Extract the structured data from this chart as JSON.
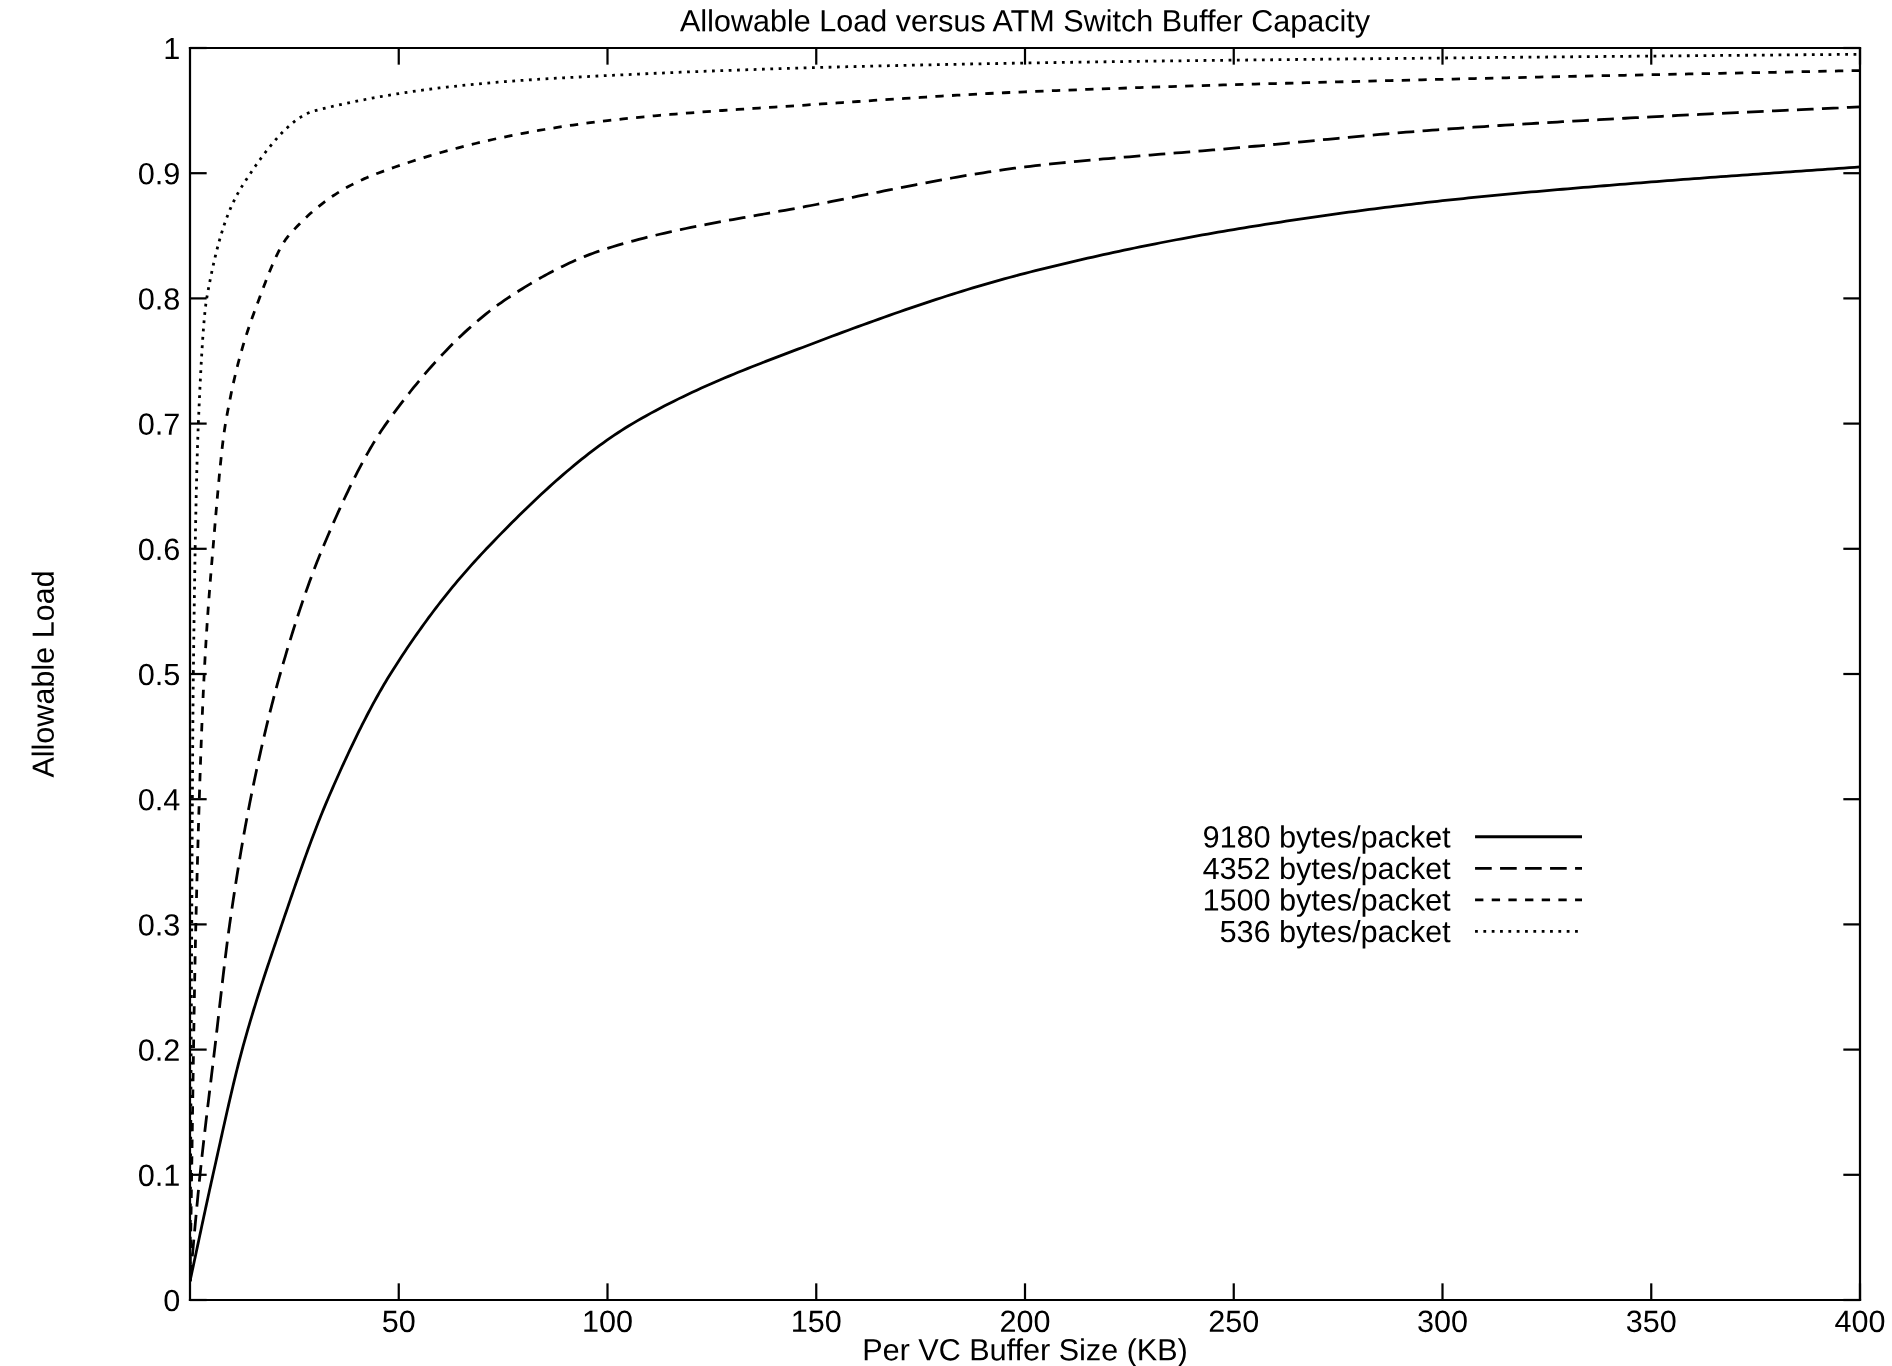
{
  "chart_data": {
    "type": "line",
    "title": "Allowable Load versus ATM Switch Buffer Capacity",
    "xlabel": "Per VC Buffer Size (KB)",
    "ylabel": "Allowable Load",
    "xlim": [
      0,
      400
    ],
    "xticks": [
      50,
      100,
      150,
      200,
      250,
      300,
      350,
      400
    ],
    "ylim": [
      0,
      1
    ],
    "yticks": [
      0,
      0.1,
      0.2,
      0.3,
      0.4,
      0.5,
      0.6,
      0.7,
      0.8,
      0.9,
      1
    ],
    "grid": false,
    "legend": "right",
    "marker": "none",
    "series": [
      {
        "name": "9180 bytes/packet",
        "color": "#000000",
        "line_style": "solid",
        "x": [
          0,
          5.5,
          12.5,
          22,
          33,
          48,
          71,
          106,
          150,
          200,
          250,
          300,
          350,
          400
        ],
        "values": [
          0.015,
          0.1,
          0.2,
          0.3,
          0.4,
          0.5,
          0.6,
          0.7,
          0.765,
          0.82,
          0.855,
          0.878,
          0.893,
          0.905
        ]
      },
      {
        "name": "4352 bytes/packet",
        "color": "#000000",
        "line_style": "dashed",
        "x": [
          0,
          2.4,
          5.9,
          9.5,
          14.5,
          21.6,
          31.7,
          47,
          76,
          100,
          150,
          200,
          250,
          300,
          350,
          400
        ],
        "values": [
          0.015,
          0.1,
          0.2,
          0.3,
          0.4,
          0.5,
          0.6,
          0.7,
          0.8,
          0.84,
          0.875,
          0.905,
          0.92,
          0.935,
          0.945,
          0.953
        ]
      },
      {
        "name": "1500 bytes/packet",
        "color": "#000000",
        "line_style": "dashed",
        "x": [
          0,
          1.4,
          3.4,
          5.5,
          8.5,
          16.6,
          23.6,
          45,
          100,
          150,
          200,
          300,
          400
        ],
        "values": [
          0.015,
          0.3,
          0.5,
          0.6,
          0.7,
          0.8,
          0.85,
          0.9,
          0.942,
          0.955,
          0.965,
          0.975,
          0.982
        ]
      },
      {
        "name": "536 bytes/packet",
        "color": "#000000",
        "line_style": "dotted",
        "x": [
          0,
          0.8,
          2,
          4,
          14.5,
          30,
          100,
          200,
          300,
          400
        ],
        "values": [
          0.015,
          0.5,
          0.7,
          0.8,
          0.9,
          0.95,
          0.978,
          0.988,
          0.992,
          0.995
        ]
      }
    ]
  }
}
